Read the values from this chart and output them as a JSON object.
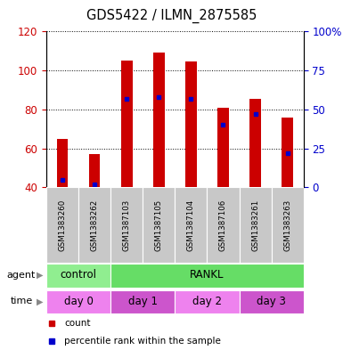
{
  "title": "GDS5422 / ILMN_2875585",
  "samples": [
    "GSM1383260",
    "GSM1383262",
    "GSM1387103",
    "GSM1387105",
    "GSM1387104",
    "GSM1387106",
    "GSM1383261",
    "GSM1383263"
  ],
  "counts": [
    65,
    57,
    105,
    109,
    104.5,
    81,
    85.5,
    76
  ],
  "percentile_ranks": [
    5,
    2,
    57,
    58,
    57,
    40,
    47,
    22
  ],
  "y_min": 40,
  "y_max": 120,
  "y_left_ticks": [
    40,
    60,
    80,
    100,
    120
  ],
  "y_right_ticks": [
    0,
    25,
    50,
    75,
    100
  ],
  "agent_labels": [
    {
      "label": "control",
      "start": 0,
      "end": 2,
      "color": "#90EE90"
    },
    {
      "label": "RANKL",
      "start": 2,
      "end": 8,
      "color": "#66DD66"
    }
  ],
  "time_labels": [
    {
      "label": "day 0",
      "start": 0,
      "end": 2,
      "color": "#EE82EE"
    },
    {
      "label": "day 1",
      "start": 2,
      "end": 4,
      "color": "#CC55CC"
    },
    {
      "label": "day 2",
      "start": 4,
      "end": 6,
      "color": "#EE82EE"
    },
    {
      "label": "day 3",
      "start": 6,
      "end": 8,
      "color": "#CC55CC"
    }
  ],
  "bar_color": "#CC0000",
  "dot_color": "#0000CC",
  "bar_width": 0.35,
  "tick_label_color_left": "#CC0000",
  "tick_label_color_right": "#0000CC",
  "sample_bg_color": "#C8C8C8",
  "legend_count_color": "#CC0000",
  "legend_dot_color": "#0000CC",
  "fig_width": 3.85,
  "fig_height": 3.93
}
